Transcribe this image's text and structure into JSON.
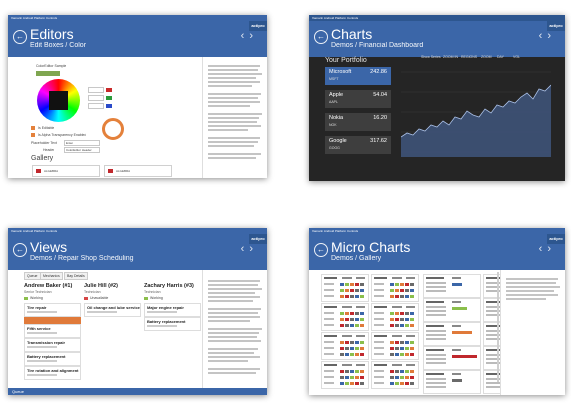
{
  "windows": {
    "editors": {
      "window_title": "Xamarin Android Platform Controls",
      "title": "Editors",
      "subtitle": "Edit Boxes / Color",
      "section_label": "ColorEditor Sample",
      "checkbox_a": "Is Editable",
      "checkbox_b": "Is Alpha Transparency Enabled",
      "field_a_label": "Placeholder Text",
      "field_a_value": "Enter",
      "field_b_label": "Header",
      "field_b_value": "ColorEditor Header",
      "gallery_title": "Gallery",
      "gallery_cards": [
        "ALGEBRA",
        "ALGEBRA"
      ],
      "logo": "actipro"
    },
    "charts": {
      "window_title": "Xamarin Android Platform Controls",
      "title": "Charts",
      "subtitle": "Demos / Financial Dashboard",
      "portfolio_label": "Your Portfolio",
      "ranges": [
        "Show Series",
        "ZOOM IN",
        "REGIONS",
        "ZOOM",
        "DAY",
        "VOL"
      ],
      "stocks": [
        {
          "name": "Microsoft",
          "symbol": "MSFT",
          "price": "242.86",
          "selected": true
        },
        {
          "name": "Apple",
          "symbol": "AAPL",
          "price": "54.04",
          "selected": false
        },
        {
          "name": "Nokia",
          "symbol": "NOK",
          "price": "16.20",
          "selected": false
        },
        {
          "name": "Google",
          "symbol": "GOOG",
          "price": "317.62",
          "selected": false
        }
      ],
      "chart_series": [
        60,
        62,
        61,
        64,
        63,
        66,
        65,
        68,
        66,
        70,
        69,
        73,
        71,
        70,
        74,
        72,
        76,
        75,
        78,
        77,
        80,
        82,
        79,
        84,
        83,
        86
      ],
      "logo": "actipro"
    },
    "views": {
      "window_title": "Xamarin Android Platform Controls",
      "title": "Views",
      "subtitle": "Demos / Repair Shop Scheduling",
      "tabs": [
        "Queue",
        "Mechanics",
        "Bay Details"
      ],
      "columns": [
        {
          "name": "Andrew Baker (#1)",
          "role": "Senior Technician",
          "status": "Working",
          "status_color": "#8bbf4c",
          "tasks": [
            "Tire repair",
            "Fifth service",
            "Transmission repair",
            "Battery replacement",
            "Tire rotation and alignment"
          ]
        },
        {
          "name": "Julie Hill (#2)",
          "role": "Technician",
          "status": "Unavailable",
          "status_color": "#d64646",
          "tasks": [
            "Oil change and lube service"
          ]
        },
        {
          "name": "Zachary Harris (#3)",
          "role": "Technician",
          "status": "Working",
          "status_color": "#8bbf4c",
          "tasks": [
            "Major engine repair",
            "Battery replacement"
          ]
        }
      ],
      "footer": "Queue",
      "logo": "actipro"
    },
    "micro": {
      "window_title": "Xamarin Android Platform Controls",
      "title": "Micro Charts",
      "subtitle": "Demos / Gallery",
      "logo": "actipro"
    }
  }
}
